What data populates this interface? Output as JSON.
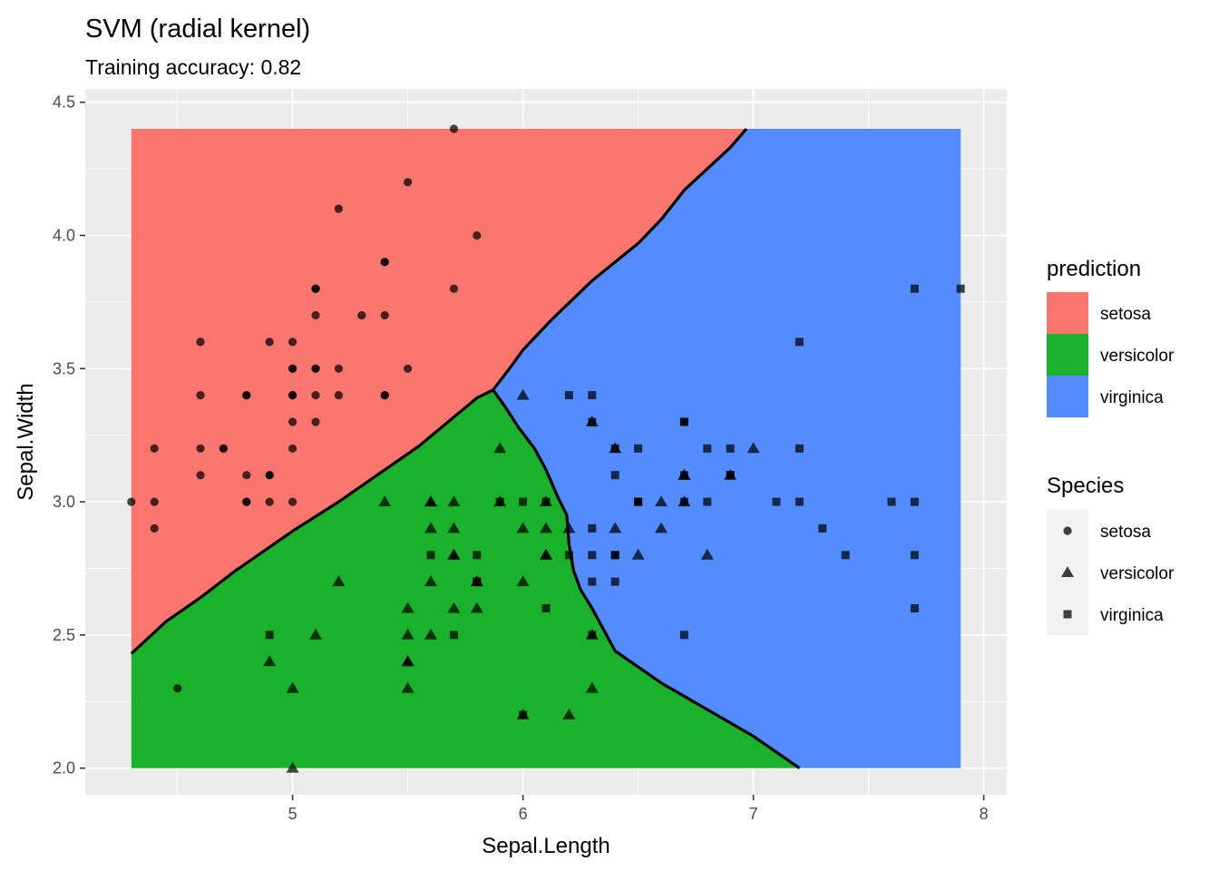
{
  "chart_data": {
    "type": "scatter",
    "title": "SVM (radial kernel)",
    "subtitle": "Training accuracy: 0.82",
    "xlabel": "Sepal.Length",
    "ylabel": "Sepal.Width",
    "xlim": [
      4.1,
      8.1
    ],
    "ylim": [
      1.9,
      4.55
    ],
    "x_ticks": [
      5,
      6,
      7,
      8
    ],
    "y_ticks": [
      2.0,
      2.5,
      3.0,
      3.5,
      4.0,
      4.5
    ],
    "x_tick_labels": [
      "5",
      "6",
      "7",
      "8"
    ],
    "y_tick_labels": [
      "2.0",
      "2.5",
      "3.0",
      "3.5",
      "4.0",
      "4.5"
    ],
    "grid": true,
    "background_color": "#ebebeb",
    "region_extent": {
      "x": [
        4.3,
        7.9
      ],
      "y": [
        2.0,
        4.4
      ]
    },
    "regions": [
      {
        "class": "setosa",
        "color": "#f8766d",
        "polygon": [
          [
            4.3,
            2.43
          ],
          [
            4.45,
            2.55
          ],
          [
            4.6,
            2.64
          ],
          [
            4.75,
            2.74
          ],
          [
            5.0,
            2.89
          ],
          [
            5.2,
            3.0
          ],
          [
            5.55,
            3.21
          ],
          [
            5.8,
            3.39
          ],
          [
            5.87,
            3.42
          ],
          [
            5.95,
            3.51
          ],
          [
            6.0,
            3.57
          ],
          [
            6.12,
            3.68
          ],
          [
            6.3,
            3.83
          ],
          [
            6.5,
            3.97
          ],
          [
            6.6,
            4.06
          ],
          [
            6.7,
            4.17
          ],
          [
            6.8,
            4.25
          ],
          [
            6.9,
            4.33
          ],
          [
            6.97,
            4.4
          ],
          [
            4.3,
            4.4
          ]
        ]
      },
      {
        "class": "versicolor",
        "color": "#1ab22c",
        "polygon": [
          [
            4.3,
            2.0
          ],
          [
            7.2,
            2.0
          ],
          [
            7.0,
            2.12
          ],
          [
            6.8,
            2.22
          ],
          [
            6.6,
            2.32
          ],
          [
            6.4,
            2.44
          ],
          [
            6.3,
            2.6
          ],
          [
            6.25,
            2.67
          ],
          [
            6.22,
            2.74
          ],
          [
            6.2,
            2.84
          ],
          [
            6.19,
            2.95
          ],
          [
            6.15,
            3.02
          ],
          [
            6.1,
            3.12
          ],
          [
            6.05,
            3.2
          ],
          [
            5.98,
            3.28
          ],
          [
            5.92,
            3.36
          ],
          [
            5.87,
            3.42
          ],
          [
            5.8,
            3.39
          ],
          [
            5.55,
            3.21
          ],
          [
            5.2,
            3.0
          ],
          [
            5.0,
            2.89
          ],
          [
            4.75,
            2.74
          ],
          [
            4.6,
            2.64
          ],
          [
            4.45,
            2.55
          ],
          [
            4.3,
            2.43
          ]
        ]
      },
      {
        "class": "virginica",
        "color": "#528cfe",
        "polygon": [
          [
            6.97,
            4.4
          ],
          [
            7.9,
            4.4
          ],
          [
            7.9,
            2.0
          ],
          [
            7.2,
            2.0
          ],
          [
            7.0,
            2.12
          ],
          [
            6.8,
            2.22
          ],
          [
            6.6,
            2.32
          ],
          [
            6.4,
            2.44
          ],
          [
            6.3,
            2.6
          ],
          [
            6.25,
            2.67
          ],
          [
            6.22,
            2.74
          ],
          [
            6.2,
            2.84
          ],
          [
            6.19,
            2.95
          ],
          [
            6.15,
            3.02
          ],
          [
            6.1,
            3.12
          ],
          [
            6.05,
            3.2
          ],
          [
            5.98,
            3.28
          ],
          [
            5.92,
            3.36
          ],
          [
            5.87,
            3.42
          ],
          [
            5.95,
            3.51
          ],
          [
            6.0,
            3.57
          ],
          [
            6.12,
            3.68
          ],
          [
            6.3,
            3.83
          ],
          [
            6.5,
            3.97
          ],
          [
            6.6,
            4.06
          ],
          [
            6.7,
            4.17
          ],
          [
            6.8,
            4.25
          ],
          [
            6.9,
            4.33
          ]
        ]
      }
    ],
    "boundaries": [
      {
        "name": "setosa-boundary",
        "points": [
          [
            4.3,
            2.43
          ],
          [
            4.45,
            2.55
          ],
          [
            4.6,
            2.64
          ],
          [
            4.75,
            2.74
          ],
          [
            5.0,
            2.89
          ],
          [
            5.2,
            3.0
          ],
          [
            5.55,
            3.21
          ],
          [
            5.8,
            3.39
          ],
          [
            5.87,
            3.42
          ],
          [
            5.95,
            3.51
          ],
          [
            6.0,
            3.57
          ],
          [
            6.12,
            3.68
          ],
          [
            6.3,
            3.83
          ],
          [
            6.5,
            3.97
          ],
          [
            6.6,
            4.06
          ],
          [
            6.7,
            4.17
          ],
          [
            6.8,
            4.25
          ],
          [
            6.9,
            4.33
          ],
          [
            6.97,
            4.4
          ]
        ]
      },
      {
        "name": "versicolor-virginica-boundary",
        "points": [
          [
            5.87,
            3.42
          ],
          [
            5.92,
            3.36
          ],
          [
            5.98,
            3.28
          ],
          [
            6.05,
            3.2
          ],
          [
            6.1,
            3.12
          ],
          [
            6.15,
            3.02
          ],
          [
            6.19,
            2.95
          ],
          [
            6.2,
            2.84
          ],
          [
            6.22,
            2.74
          ],
          [
            6.25,
            2.67
          ],
          [
            6.3,
            2.6
          ],
          [
            6.4,
            2.44
          ],
          [
            6.6,
            2.32
          ],
          [
            6.8,
            2.22
          ],
          [
            7.0,
            2.12
          ],
          [
            7.2,
            2.0
          ]
        ]
      }
    ],
    "series": [
      {
        "name": "setosa",
        "shape": "circle",
        "x": [
          5.1,
          4.9,
          4.7,
          4.6,
          5.0,
          5.4,
          4.6,
          5.0,
          4.4,
          4.9,
          5.4,
          4.8,
          4.8,
          4.3,
          5.8,
          5.7,
          5.4,
          5.1,
          5.7,
          5.1,
          5.4,
          5.1,
          4.6,
          5.1,
          4.8,
          5.0,
          5.0,
          5.2,
          5.2,
          4.7,
          4.8,
          5.4,
          5.2,
          5.5,
          4.9,
          5.0,
          5.5,
          4.9,
          4.4,
          5.1,
          5.0,
          4.5,
          4.4,
          5.0,
          5.1,
          4.8,
          5.1,
          4.6,
          5.3,
          5.0
        ],
        "y": [
          3.5,
          3.0,
          3.2,
          3.1,
          3.6,
          3.9,
          3.4,
          3.4,
          2.9,
          3.1,
          3.7,
          3.4,
          3.0,
          3.0,
          4.0,
          4.4,
          3.9,
          3.5,
          3.8,
          3.8,
          3.4,
          3.7,
          3.6,
          3.3,
          3.4,
          3.0,
          3.4,
          3.5,
          3.4,
          3.2,
          3.1,
          3.4,
          4.1,
          4.2,
          3.1,
          3.2,
          3.5,
          3.6,
          3.0,
          3.4,
          3.5,
          2.3,
          3.2,
          3.5,
          3.8,
          3.0,
          3.8,
          3.2,
          3.7,
          3.3
        ]
      },
      {
        "name": "versicolor",
        "shape": "triangle",
        "x": [
          7.0,
          6.4,
          6.9,
          5.5,
          6.5,
          5.7,
          6.3,
          4.9,
          6.6,
          5.2,
          5.0,
          5.9,
          6.0,
          6.1,
          5.6,
          6.7,
          5.6,
          5.8,
          6.2,
          5.6,
          5.9,
          6.1,
          6.3,
          6.1,
          6.4,
          6.6,
          6.8,
          6.7,
          6.0,
          5.7,
          5.5,
          5.5,
          5.8,
          6.0,
          5.4,
          6.0,
          6.7,
          6.3,
          5.6,
          5.5,
          5.5,
          6.1,
          5.8,
          5.0,
          5.6,
          5.7,
          5.7,
          6.2,
          5.1,
          5.7
        ],
        "y": [
          3.2,
          3.2,
          3.1,
          2.3,
          2.8,
          2.8,
          3.3,
          2.4,
          2.9,
          2.7,
          2.0,
          3.0,
          2.2,
          2.9,
          2.9,
          3.1,
          3.0,
          2.7,
          2.2,
          2.5,
          3.2,
          2.8,
          2.5,
          2.8,
          2.9,
          3.0,
          2.8,
          3.0,
          2.9,
          2.6,
          2.4,
          2.4,
          2.7,
          2.7,
          3.0,
          3.4,
          3.1,
          2.3,
          3.0,
          2.5,
          2.6,
          3.0,
          2.6,
          2.3,
          2.7,
          3.0,
          2.9,
          2.9,
          2.5,
          2.8
        ]
      },
      {
        "name": "virginica",
        "shape": "square",
        "x": [
          6.3,
          5.8,
          7.1,
          6.3,
          6.5,
          7.6,
          4.9,
          7.3,
          6.7,
          7.2,
          6.5,
          6.4,
          6.8,
          5.7,
          5.8,
          6.4,
          6.5,
          7.7,
          7.7,
          6.0,
          6.9,
          5.6,
          7.7,
          6.3,
          6.7,
          7.2,
          6.2,
          6.1,
          6.4,
          7.2,
          7.4,
          7.9,
          6.4,
          6.3,
          6.1,
          7.7,
          6.3,
          6.4,
          6.0,
          6.9,
          6.7,
          6.9,
          5.8,
          6.8,
          6.7,
          6.7,
          6.3,
          6.5,
          6.2,
          5.9
        ],
        "y": [
          3.3,
          2.7,
          3.0,
          2.9,
          3.0,
          3.0,
          2.5,
          2.9,
          2.5,
          3.6,
          3.2,
          2.7,
          3.0,
          2.5,
          2.8,
          3.2,
          3.0,
          3.8,
          2.6,
          2.2,
          3.2,
          2.8,
          2.8,
          2.7,
          3.3,
          3.2,
          2.8,
          3.0,
          2.8,
          3.0,
          2.8,
          3.8,
          2.8,
          2.8,
          2.6,
          3.0,
          3.4,
          3.1,
          3.0,
          3.1,
          3.1,
          3.1,
          2.7,
          3.2,
          3.3,
          3.0,
          2.5,
          3.0,
          3.4,
          3.0
        ]
      }
    ],
    "legends": [
      {
        "title": "prediction",
        "placement": "right",
        "entries": [
          {
            "label": "setosa",
            "color": "#f8766d"
          },
          {
            "label": "versicolor",
            "color": "#1ab22c"
          },
          {
            "label": "virginica",
            "color": "#528cfe"
          }
        ]
      },
      {
        "title": "Species",
        "placement": "right",
        "entries": [
          {
            "label": "setosa",
            "shape": "circle"
          },
          {
            "label": "versicolor",
            "shape": "triangle"
          },
          {
            "label": "virginica",
            "shape": "square"
          }
        ]
      }
    ]
  }
}
